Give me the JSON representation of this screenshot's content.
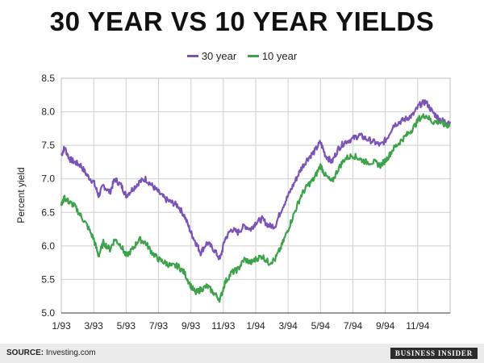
{
  "chart_data": {
    "type": "line",
    "title": "30 YEAR VS 10 YEAR YIELDS",
    "xlabel": "",
    "ylabel": "Percent yield",
    "xlim": [
      "1/93",
      "1/95"
    ],
    "ylim": [
      5.0,
      8.5
    ],
    "y_ticks": [
      "5.0",
      "5.5",
      "6.0",
      "6.5",
      "7.0",
      "7.5",
      "8.0",
      "8.5"
    ],
    "x_ticks": [
      {
        "label": "1/93",
        "month": 0
      },
      {
        "label": "3/93",
        "month": 2
      },
      {
        "label": "5/93",
        "month": 4
      },
      {
        "label": "7/93",
        "month": 6
      },
      {
        "label": "9/93",
        "month": 8
      },
      {
        "label": "11/93",
        "month": 10
      },
      {
        "label": "1/94",
        "month": 12
      },
      {
        "label": "3/94",
        "month": 14
      },
      {
        "label": "5/94",
        "month": 16
      },
      {
        "label": "7/94",
        "month": 18
      },
      {
        "label": "9/94",
        "month": 20
      },
      {
        "label": "11/94",
        "month": 22
      }
    ],
    "grid": true,
    "legend_position": "top-center",
    "series": [
      {
        "name": "30 year",
        "color": "#7b52b5",
        "points": [
          [
            0.0,
            7.35
          ],
          [
            0.2,
            7.47
          ],
          [
            0.5,
            7.3
          ],
          [
            0.8,
            7.25
          ],
          [
            1.2,
            7.2
          ],
          [
            1.6,
            7.05
          ],
          [
            2.0,
            6.95
          ],
          [
            2.3,
            6.75
          ],
          [
            2.6,
            6.9
          ],
          [
            3.0,
            6.8
          ],
          [
            3.3,
            7.0
          ],
          [
            3.7,
            6.9
          ],
          [
            4.0,
            6.75
          ],
          [
            4.4,
            6.85
          ],
          [
            4.8,
            6.95
          ],
          [
            5.2,
            7.0
          ],
          [
            5.6,
            6.9
          ],
          [
            6.0,
            6.8
          ],
          [
            6.4,
            6.7
          ],
          [
            6.8,
            6.65
          ],
          [
            7.2,
            6.6
          ],
          [
            7.6,
            6.45
          ],
          [
            8.0,
            6.2
          ],
          [
            8.3,
            6.05
          ],
          [
            8.6,
            5.9
          ],
          [
            9.0,
            6.05
          ],
          [
            9.4,
            5.95
          ],
          [
            9.8,
            5.8
          ],
          [
            10.1,
            6.1
          ],
          [
            10.5,
            6.25
          ],
          [
            10.9,
            6.2
          ],
          [
            11.3,
            6.3
          ],
          [
            11.7,
            6.25
          ],
          [
            12.0,
            6.35
          ],
          [
            12.4,
            6.4
          ],
          [
            12.8,
            6.3
          ],
          [
            13.2,
            6.3
          ],
          [
            13.6,
            6.55
          ],
          [
            14.0,
            6.75
          ],
          [
            14.4,
            6.95
          ],
          [
            14.8,
            7.15
          ],
          [
            15.2,
            7.3
          ],
          [
            15.6,
            7.4
          ],
          [
            16.0,
            7.55
          ],
          [
            16.3,
            7.35
          ],
          [
            16.7,
            7.25
          ],
          [
            17.1,
            7.45
          ],
          [
            17.5,
            7.55
          ],
          [
            18.0,
            7.6
          ],
          [
            18.4,
            7.65
          ],
          [
            18.8,
            7.6
          ],
          [
            19.3,
            7.55
          ],
          [
            19.7,
            7.5
          ],
          [
            20.1,
            7.6
          ],
          [
            20.5,
            7.8
          ],
          [
            20.9,
            7.85
          ],
          [
            21.3,
            7.9
          ],
          [
            21.7,
            7.95
          ],
          [
            22.1,
            8.1
          ],
          [
            22.5,
            8.15
          ],
          [
            22.9,
            8.0
          ],
          [
            23.3,
            7.9
          ],
          [
            23.7,
            7.85
          ],
          [
            24.0,
            7.85
          ]
        ]
      },
      {
        "name": "10 year",
        "color": "#3ca34a",
        "points": [
          [
            0.0,
            6.6
          ],
          [
            0.2,
            6.72
          ],
          [
            0.5,
            6.65
          ],
          [
            0.8,
            6.6
          ],
          [
            1.2,
            6.45
          ],
          [
            1.6,
            6.3
          ],
          [
            2.0,
            6.1
          ],
          [
            2.3,
            5.85
          ],
          [
            2.6,
            6.05
          ],
          [
            3.0,
            5.95
          ],
          [
            3.3,
            6.1
          ],
          [
            3.7,
            6.0
          ],
          [
            4.0,
            5.85
          ],
          [
            4.4,
            5.95
          ],
          [
            4.8,
            6.1
          ],
          [
            5.2,
            6.05
          ],
          [
            5.6,
            5.9
          ],
          [
            6.0,
            5.8
          ],
          [
            6.4,
            5.75
          ],
          [
            6.8,
            5.7
          ],
          [
            7.2,
            5.7
          ],
          [
            7.6,
            5.6
          ],
          [
            8.0,
            5.4
          ],
          [
            8.3,
            5.3
          ],
          [
            8.6,
            5.35
          ],
          [
            9.0,
            5.4
          ],
          [
            9.4,
            5.3
          ],
          [
            9.8,
            5.2
          ],
          [
            10.1,
            5.45
          ],
          [
            10.5,
            5.6
          ],
          [
            10.9,
            5.65
          ],
          [
            11.3,
            5.8
          ],
          [
            11.7,
            5.75
          ],
          [
            12.0,
            5.8
          ],
          [
            12.4,
            5.85
          ],
          [
            12.8,
            5.75
          ],
          [
            13.2,
            5.8
          ],
          [
            13.6,
            6.0
          ],
          [
            14.0,
            6.25
          ],
          [
            14.4,
            6.5
          ],
          [
            14.8,
            6.75
          ],
          [
            15.2,
            6.9
          ],
          [
            15.6,
            7.0
          ],
          [
            16.0,
            7.2
          ],
          [
            16.3,
            7.05
          ],
          [
            16.7,
            6.95
          ],
          [
            17.1,
            7.15
          ],
          [
            17.5,
            7.3
          ],
          [
            18.0,
            7.35
          ],
          [
            18.4,
            7.3
          ],
          [
            18.8,
            7.25
          ],
          [
            19.3,
            7.25
          ],
          [
            19.7,
            7.2
          ],
          [
            20.1,
            7.3
          ],
          [
            20.5,
            7.45
          ],
          [
            20.9,
            7.55
          ],
          [
            21.3,
            7.65
          ],
          [
            21.7,
            7.75
          ],
          [
            22.1,
            7.9
          ],
          [
            22.5,
            7.95
          ],
          [
            22.9,
            7.85
          ],
          [
            23.3,
            7.85
          ],
          [
            23.7,
            7.8
          ],
          [
            24.0,
            7.8
          ]
        ]
      }
    ]
  },
  "footer": {
    "source_prefix": "SOURCE:",
    "source_text": " Investing.com",
    "brand": "BUSINESS INSIDER"
  }
}
